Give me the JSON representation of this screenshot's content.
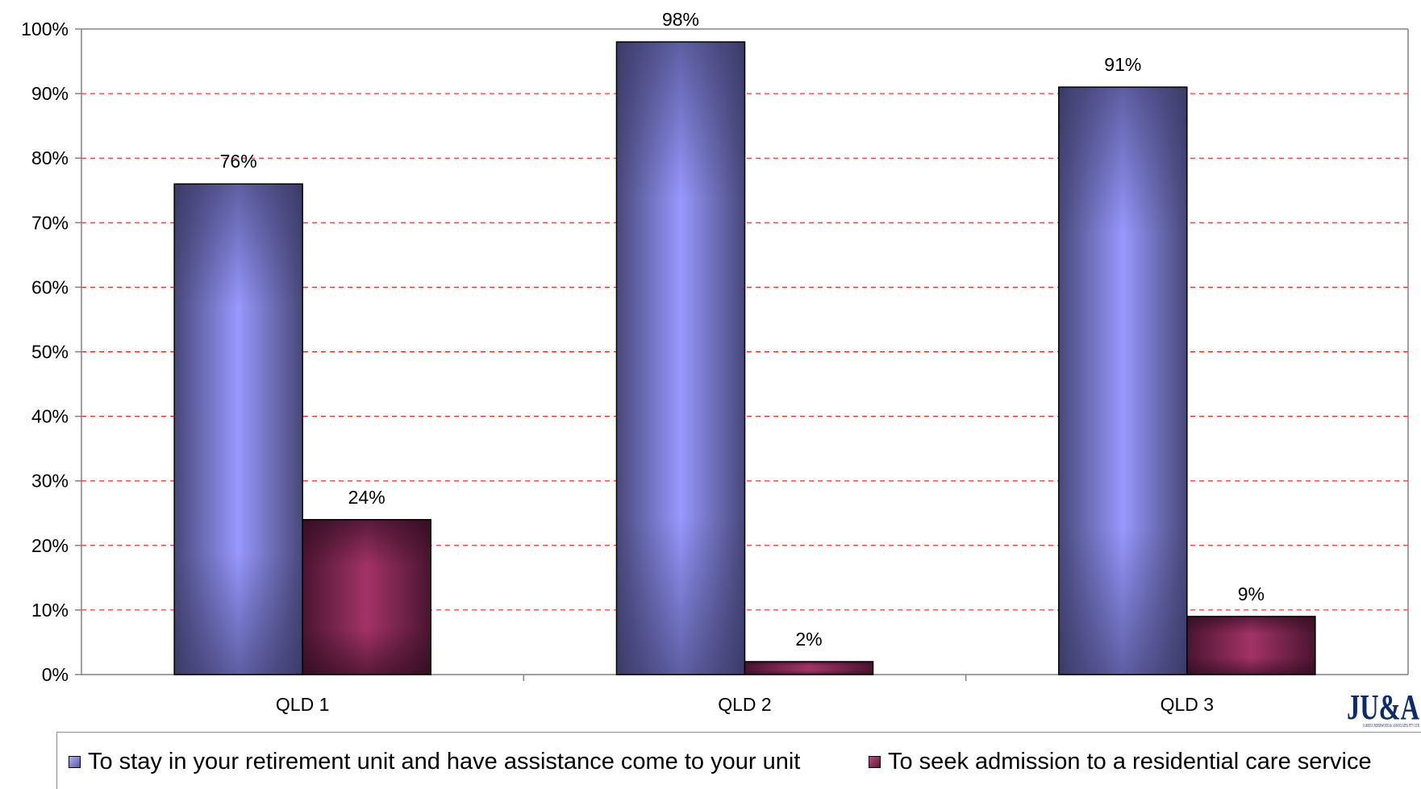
{
  "chart_data": {
    "type": "bar",
    "categories": [
      "QLD 1",
      "QLD 2",
      "QLD 3"
    ],
    "series": [
      {
        "name": "To stay in your retirement unit and have assistance come to your unit",
        "values": [
          76,
          98,
          91
        ],
        "labels": [
          "76%",
          "98%",
          "91%"
        ]
      },
      {
        "name": "To seek admission to a residential care service",
        "values": [
          24,
          2,
          9
        ],
        "labels": [
          "24%",
          "2%",
          "9%"
        ]
      }
    ],
    "ylim": [
      0,
      100
    ],
    "yticks": [
      "0%",
      "10%",
      "20%",
      "30%",
      "40%",
      "50%",
      "60%",
      "70%",
      "80%",
      "90%",
      "100%"
    ],
    "grid": true,
    "legend_position": "bottom",
    "colors": {
      "series1_edge": "#48487a",
      "series1_center": "#9898ff",
      "series2_edge": "#4a1530",
      "series2_center": "#a33366",
      "grid": "#ff0000"
    }
  },
  "legend": {
    "items": [
      {
        "label": "To stay in your retirement unit and have assistance come to your unit",
        "color": "#7777cc"
      },
      {
        "label": "To seek admission to a residential care service",
        "color": "#8b2550"
      }
    ]
  },
  "logo": {
    "text": "JU&A",
    "subtext": "JAMES UNDERWOOD & ASSOCIATES PTY LTD"
  }
}
